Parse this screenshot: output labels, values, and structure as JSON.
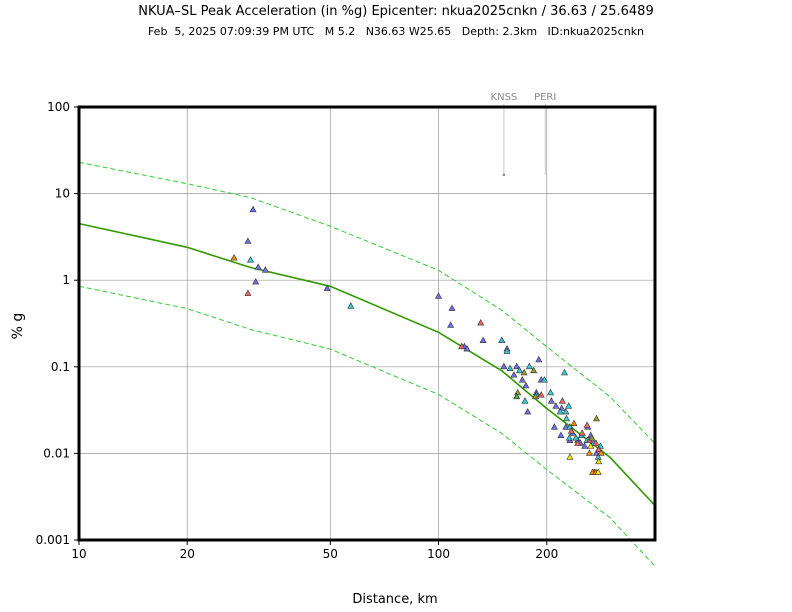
{
  "chart_data": {
    "type": "scatter",
    "title": "NKUA–SL Peak Acceleration (in %g) Epicenter: nkua2025cnkn / 36.63 / 25.6489",
    "subtitle": "Feb  5, 2025 07:09:39 PM UTC   M 5.2   N36.63 W25.65   Depth: 2.3km   ID:nkua2025cnkn",
    "xlabel": "Distance, km",
    "ylabel": "% g",
    "xscale": "log",
    "yscale": "log",
    "xlim": [
      10,
      400
    ],
    "ylim": [
      0.001,
      100
    ],
    "grid": true,
    "x_ticks": [
      {
        "value": 10,
        "label": "10"
      },
      {
        "value": 20,
        "label": "20"
      },
      {
        "value": 50,
        "label": "50"
      },
      {
        "value": 100,
        "label": "100"
      },
      {
        "value": 200,
        "label": "200"
      }
    ],
    "y_ticks": [
      {
        "value": 0.001,
        "label": "0.001"
      },
      {
        "value": 0.01,
        "label": "0.01"
      },
      {
        "value": 0.1,
        "label": "0.1"
      },
      {
        "value": 1,
        "label": "1"
      },
      {
        "value": 10,
        "label": "10"
      },
      {
        "value": 100,
        "label": "100"
      }
    ],
    "station_labels": [
      {
        "text": "KNSS",
        "x": 152,
        "y": 16.5
      },
      {
        "text": "PERI",
        "x": 198,
        "y": 16.5
      }
    ],
    "curves": {
      "median": {
        "color": "#339900",
        "x": [
          10,
          20,
          30,
          50,
          100,
          150,
          200,
          300,
          400
        ],
        "y": [
          4.5,
          2.4,
          1.4,
          0.85,
          0.25,
          0.09,
          0.033,
          0.009,
          0.0025
        ]
      },
      "upper": {
        "color": "#33cc33",
        "x": [
          10,
          20,
          30,
          50,
          100,
          150,
          200,
          300,
          400
        ],
        "y": [
          23,
          13,
          9,
          4.2,
          1.3,
          0.45,
          0.17,
          0.045,
          0.013
        ]
      },
      "lower": {
        "color": "#33cc33",
        "x": [
          10,
          20,
          30,
          50,
          100,
          150,
          200,
          300,
          400
        ],
        "y": [
          0.85,
          0.47,
          0.27,
          0.16,
          0.048,
          0.017,
          0.0065,
          0.0018,
          0.0005
        ]
      }
    },
    "colors": {
      "blue": "#7070ee",
      "cyan": "#33ccdd",
      "red": "#ee6666",
      "orange": "#ff8800",
      "olive": "#999933",
      "yellow": "#eeee00",
      "green": "#44aa44"
    },
    "series": [
      {
        "color": "blue",
        "points": [
          [
            30.5,
            6.5
          ],
          [
            29.5,
            2.8
          ],
          [
            31.5,
            1.4
          ],
          [
            33,
            1.3
          ],
          [
            31,
            0.95
          ],
          [
            49,
            0.8
          ],
          [
            100,
            0.65
          ],
          [
            109,
            0.47
          ],
          [
            108,
            0.3
          ],
          [
            118,
            0.17
          ],
          [
            120,
            0.16
          ],
          [
            133,
            0.2
          ],
          [
            150,
            0.2
          ],
          [
            155,
            0.16
          ],
          [
            152,
            0.1
          ],
          [
            162,
            0.08
          ],
          [
            165,
            0.1
          ],
          [
            171,
            0.07
          ],
          [
            175,
            0.06
          ],
          [
            177,
            0.03
          ],
          [
            187,
            0.05
          ],
          [
            190,
            0.12
          ],
          [
            193,
            0.07
          ],
          [
            206,
            0.04
          ],
          [
            212,
            0.035
          ],
          [
            220,
            0.033
          ],
          [
            226,
            0.02
          ],
          [
            236,
            0.017
          ],
          [
            210,
            0.02
          ],
          [
            260,
            0.02
          ],
          [
            265,
            0.016
          ],
          [
            219,
            0.016
          ],
          [
            244,
            0.014
          ],
          [
            248,
            0.013
          ],
          [
            232,
            0.014
          ],
          [
            255,
            0.012
          ],
          [
            275,
            0.01
          ]
        ]
      },
      {
        "color": "cyan",
        "points": [
          [
            30,
            1.7
          ],
          [
            57,
            0.5
          ],
          [
            150,
            0.2
          ],
          [
            155,
            0.15
          ],
          [
            158,
            0.095
          ],
          [
            168,
            0.09
          ],
          [
            174,
            0.04
          ],
          [
            179,
            0.1
          ],
          [
            187,
            0.047
          ],
          [
            197,
            0.07
          ],
          [
            205,
            0.05
          ],
          [
            218,
            0.03
          ],
          [
            224,
            0.085
          ],
          [
            227,
            0.025
          ],
          [
            230,
            0.035
          ],
          [
            232,
            0.02
          ],
          [
            241,
            0.015
          ],
          [
            226,
            0.03
          ],
          [
            231,
            0.015
          ],
          [
            259,
            0.014
          ],
          [
            270,
            0.013
          ],
          [
            282,
            0.012
          ],
          [
            278,
            0.009
          ],
          [
            250,
            0.016
          ]
        ]
      },
      {
        "color": "red",
        "points": [
          [
            29.5,
            0.7
          ],
          [
            116,
            0.17
          ],
          [
            131,
            0.32
          ],
          [
            193,
            0.047
          ],
          [
            221,
            0.04
          ],
          [
            234,
            0.018
          ],
          [
            244,
            0.013
          ],
          [
            251,
            0.017
          ],
          [
            259,
            0.021
          ],
          [
            263,
            0.014
          ],
          [
            271,
            0.006
          ],
          [
            274,
            0.013
          ],
          [
            279,
            0.011
          ]
        ]
      },
      {
        "color": "orange",
        "points": [
          [
            27,
            1.8
          ],
          [
            238,
            0.022
          ],
          [
            263,
            0.01
          ],
          [
            268,
            0.006
          ],
          [
            274,
            0.006
          ],
          [
            283,
            0.01
          ]
        ]
      },
      {
        "color": "olive",
        "points": [
          [
            166,
            0.05
          ],
          [
            173,
            0.085
          ],
          [
            184,
            0.09
          ],
          [
            186,
            0.045
          ],
          [
            267,
            0.015
          ],
          [
            275,
            0.025
          ]
        ]
      },
      {
        "color": "yellow",
        "points": [
          [
            232,
            0.009
          ],
          [
            265,
            0.012
          ],
          [
            278,
            0.006
          ],
          [
            279,
            0.008
          ]
        ]
      },
      {
        "color": "green",
        "points": [
          [
            165,
            0.045
          ]
        ]
      }
    ]
  }
}
